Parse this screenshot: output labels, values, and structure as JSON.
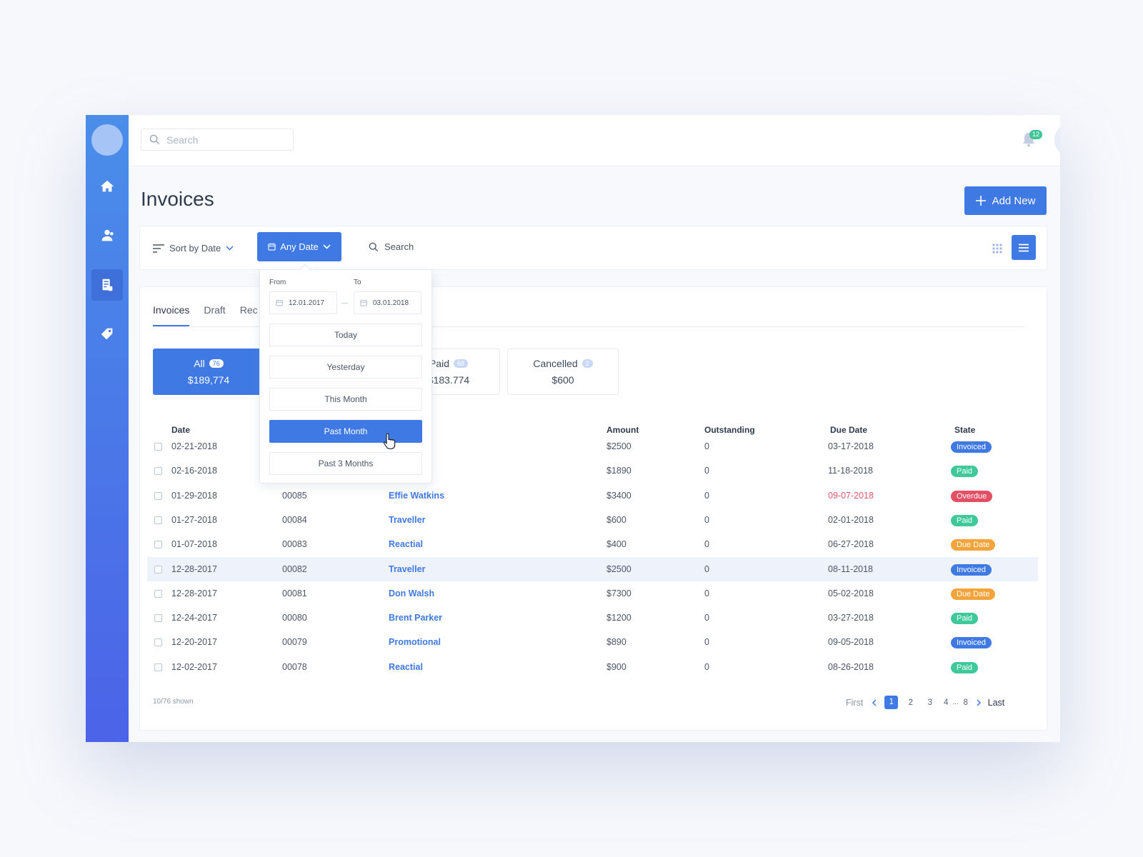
{
  "topbar": {
    "search_placeholder": "Search",
    "notification_count": "12"
  },
  "page": {
    "title": "Invoices",
    "add_new_label": "Add New"
  },
  "toolbar": {
    "sort_label": "Sort by Date",
    "date_filter_label": "Any Date",
    "search_label": "Search"
  },
  "tabs": [
    {
      "label": "Invoices",
      "active": true
    },
    {
      "label": "Draft",
      "active": false
    },
    {
      "label": "Rec",
      "active": false
    }
  ],
  "summary": {
    "all": {
      "label": "All",
      "count": "76",
      "amount": "$189,774"
    },
    "paid": {
      "label": "Paid",
      "count": "68",
      "amount": "$183.774"
    },
    "cancelled": {
      "label": "Cancelled",
      "count": "2",
      "amount": "$600"
    }
  },
  "table": {
    "columns": [
      "Date",
      "Amount",
      "Outstanding",
      "Due Date",
      "State"
    ],
    "rows": [
      {
        "date": "02-21-2018",
        "number": "",
        "customer": "",
        "amount": "$2500",
        "outstanding": "0",
        "due": "03-17-2018",
        "state": "Invoiced",
        "state_kind": "invoiced"
      },
      {
        "date": "02-16-2018",
        "number": "",
        "customer": "nal",
        "amount": "$1890",
        "outstanding": "0",
        "due": "11-18-2018",
        "state": "Paid",
        "state_kind": "paid"
      },
      {
        "date": "01-29-2018",
        "number": "00085",
        "customer": "Effie Watkins",
        "amount": "$3400",
        "outstanding": "0",
        "due": "09-07-2018",
        "due_overdue": true,
        "state": "Overdue",
        "state_kind": "overdue"
      },
      {
        "date": "01-27-2018",
        "number": "00084",
        "customer": "Traveller",
        "amount": "$600",
        "outstanding": "0",
        "due": "02-01-2018",
        "state": "Paid",
        "state_kind": "paid"
      },
      {
        "date": "01-07-2018",
        "number": "00083",
        "customer": "Reactial",
        "amount": "$400",
        "outstanding": "0",
        "due": "06-27-2018",
        "state": "Due Date",
        "state_kind": "duedate"
      },
      {
        "date": "12-28-2017",
        "number": "00082",
        "customer": "Traveller",
        "amount": "$2500",
        "outstanding": "0",
        "due": "08-11-2018",
        "state": "Invoiced",
        "state_kind": "invoiced",
        "highlighted": true
      },
      {
        "date": "12-28-2017",
        "number": "00081",
        "customer": "Don Walsh",
        "amount": "$7300",
        "outstanding": "0",
        "due": "05-02-2018",
        "state": "Due Date",
        "state_kind": "duedate"
      },
      {
        "date": "12-24-2017",
        "number": "00080",
        "customer": "Brent Parker",
        "amount": "$1200",
        "outstanding": "0",
        "due": "03-27-2018",
        "state": "Paid",
        "state_kind": "paid"
      },
      {
        "date": "12-20-2017",
        "number": "00079",
        "customer": "Promotional",
        "amount": "$890",
        "outstanding": "0",
        "due": "09-05-2018",
        "state": "Invoiced",
        "state_kind": "invoiced"
      },
      {
        "date": "12-02-2017",
        "number": "00078",
        "customer": "Reactial",
        "amount": "$900",
        "outstanding": "0",
        "due": "08-26-2018",
        "state": "Paid",
        "state_kind": "paid"
      }
    ]
  },
  "footer": {
    "shown": "10/76 shown"
  },
  "pagination": {
    "first": "First",
    "pages": [
      "1",
      "2",
      "3",
      "4"
    ],
    "ellipsis": "...",
    "last_page": "8",
    "last": "Last",
    "current": "1"
  },
  "date_dropdown": {
    "from_label": "From",
    "to_label": "To",
    "from_value": "12.01.2017",
    "to_value": "03.01.2018",
    "options": [
      "Today",
      "Yesterday",
      "This Month",
      "Past Month",
      "Past 3 Months"
    ],
    "selected": "Past Month"
  },
  "colors": {
    "accent": "#3f79e3",
    "paid": "#3fc99a",
    "overdue": "#e35065",
    "due_date": "#f5a43c"
  }
}
